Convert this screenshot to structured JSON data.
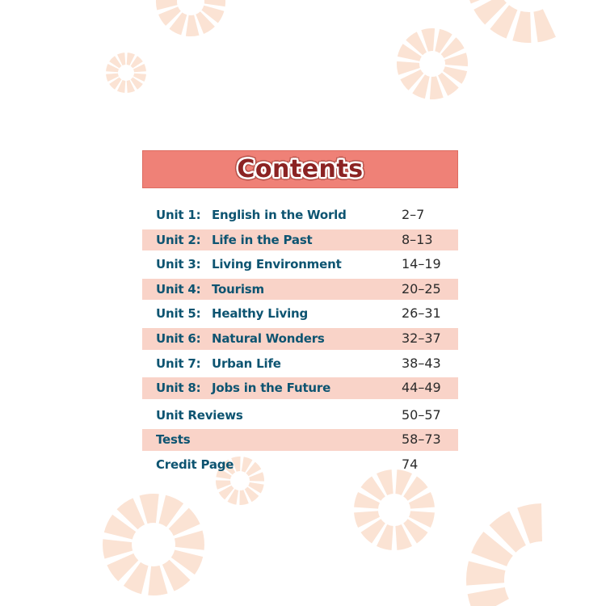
{
  "header": {
    "title": "Contents"
  },
  "toc": {
    "rows": [
      {
        "unit": "Unit 1:",
        "title": "English in the World",
        "pages": "2–7",
        "shaded": false
      },
      {
        "unit": "Unit 2:",
        "title": "Life in the Past",
        "pages": "8–13",
        "shaded": true
      },
      {
        "unit": "Unit 3:",
        "title": "Living Environment",
        "pages": "14–19",
        "shaded": false
      },
      {
        "unit": "Unit 4:",
        "title": "Tourism",
        "pages": "20–25",
        "shaded": true
      },
      {
        "unit": "Unit 5:",
        "title": "Healthy Living",
        "pages": "26–31",
        "shaded": false
      },
      {
        "unit": "Unit 6:",
        "title": "Natural Wonders",
        "pages": "32–37",
        "shaded": true
      },
      {
        "unit": "Unit 7:",
        "title": "Urban Life",
        "pages": "38–43",
        "shaded": false
      },
      {
        "unit": "Unit 8:",
        "title": "Jobs in the Future",
        "pages": "44–49",
        "shaded": true
      },
      {
        "unit": "Unit Reviews",
        "title": "",
        "pages": "50–57",
        "shaded": false
      },
      {
        "unit": "Tests",
        "title": "",
        "pages": "58–73",
        "shaded": true
      },
      {
        "unit": "Credit Page",
        "title": "",
        "pages": "74",
        "shaded": false
      }
    ]
  },
  "colors": {
    "banner": "#ef8177",
    "banner_border": "#dd6c61",
    "row_shade": "#f9d3c8",
    "unit_text": "#0d5471",
    "page_text": "#2b2b2b",
    "title_text": "#8b2323",
    "decoration": "#fbe3d4"
  }
}
